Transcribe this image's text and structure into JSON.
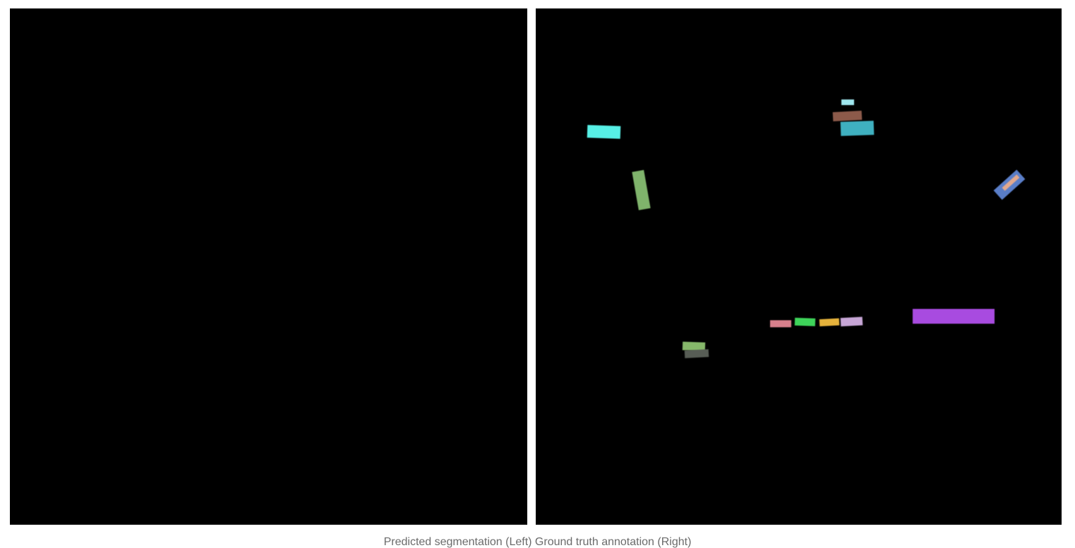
{
  "caption": "Predicted segmentation (Left) Ground truth annotation (Right)",
  "panels": {
    "left": {
      "label": "predicted-segmentation",
      "background": "#000000"
    },
    "right": {
      "label": "ground-truth-annotation",
      "background": "#000000"
    }
  },
  "mask_colors": {
    "cyan": "#57f0e6",
    "sage-green": "#7fb36b",
    "light-cyan": "#9fe7ef",
    "brown": "#8c5a4a",
    "teal": "#3fb0c0",
    "steel-blue": "#5a7ec8",
    "peach": "#e3a98d",
    "purple": "#a84be0",
    "rose": "#d8808c",
    "green": "#3ed45a",
    "yellow": "#e6b33c",
    "lavender": "#c7a6d6",
    "olive-green": "#86b86a",
    "dark-gray": "#575d55"
  }
}
